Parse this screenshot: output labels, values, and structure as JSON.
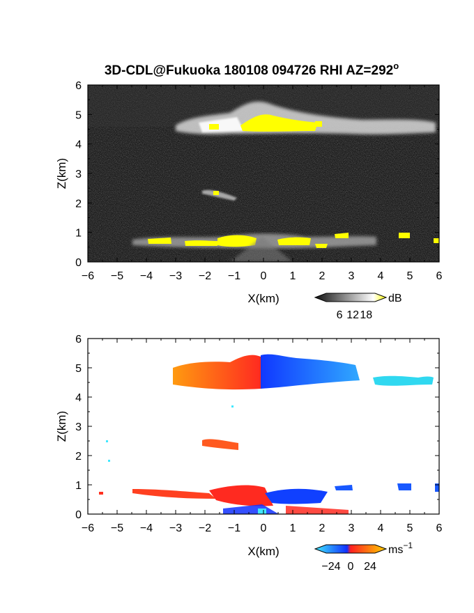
{
  "chart_data": [
    {
      "type": "heatmap",
      "title": "3D-CDL@Fukuoka 180108 094726 RHI AZ=292",
      "title_superscript": "o",
      "xlabel": "X(km)",
      "ylabel": "Z(km)",
      "xlim": [
        -6,
        6
      ],
      "ylim": [
        0,
        6
      ],
      "xticks": [
        -6,
        -5,
        -4,
        -3,
        -2,
        -1,
        0,
        1,
        2,
        3,
        4,
        5,
        6
      ],
      "yticks": [
        0,
        1,
        2,
        3,
        4,
        5,
        6
      ],
      "quantity": "dB",
      "colorbar": {
        "ticks": [
          6,
          12,
          18
        ],
        "unit": "dB",
        "min": 0,
        "max": 22,
        "colors": [
          "#111111",
          "#ffffff",
          "#ffff00"
        ]
      },
      "features": [
        {
          "x": [
            -3.0,
            5.5
          ],
          "z": [
            4.35,
            5.1
          ],
          "value": 15
        },
        {
          "x": [
            -1.5,
            1.5
          ],
          "z": [
            4.4,
            4.9
          ],
          "value": 19
        },
        {
          "x": [
            -4.5,
            3.5
          ],
          "z": [
            0.55,
            0.95
          ],
          "value": 16
        },
        {
          "x": [
            -2.2,
            -1.0
          ],
          "z": [
            2.2,
            2.5
          ],
          "value": 12
        },
        {
          "x": [
            4.6,
            6.0
          ],
          "z": [
            0.8,
            1.0
          ],
          "value": 19
        }
      ]
    },
    {
      "type": "heatmap",
      "xlabel": "X(km)",
      "ylabel": "Z(km)",
      "xlim": [
        -6,
        6
      ],
      "ylim": [
        0,
        6
      ],
      "xticks": [
        -6,
        -5,
        -4,
        -3,
        -2,
        -1,
        0,
        1,
        2,
        3,
        4,
        5,
        6
      ],
      "yticks": [
        0,
        1,
        2,
        3,
        4,
        5,
        6
      ],
      "quantity": "radial velocity",
      "colorbar": {
        "ticks": [
          -24,
          0,
          24
        ],
        "unit": "ms",
        "unit_superscript": "−1",
        "min": -30,
        "max": 30,
        "colors": [
          "#40e8ff",
          "#1030ff",
          "#ff3020",
          "#ffd000"
        ]
      },
      "features": [
        {
          "x": [
            -3.0,
            -0.1
          ],
          "z": [
            4.3,
            5.1
          ],
          "value": 18
        },
        {
          "x": [
            -0.1,
            3.3
          ],
          "z": [
            4.4,
            5.4
          ],
          "value": -14
        },
        {
          "x": [
            3.9,
            5.9
          ],
          "z": [
            4.45,
            4.7
          ],
          "value": -24
        },
        {
          "x": [
            -2.1,
            -0.8
          ],
          "z": [
            2.2,
            2.5
          ],
          "value": 12
        },
        {
          "x": [
            -5.6,
            -0.6
          ],
          "z": [
            0.55,
            0.9
          ],
          "value": 8
        },
        {
          "x": [
            -0.8,
            2.8
          ],
          "z": [
            0.05,
            0.9
          ],
          "value": -8
        },
        {
          "x": [
            4.6,
            5.0
          ],
          "z": [
            0.8,
            1.0
          ],
          "value": -12
        },
        {
          "x": [
            5.9,
            6.0
          ],
          "z": [
            0.75,
            1.0
          ],
          "value": -12
        }
      ]
    }
  ]
}
